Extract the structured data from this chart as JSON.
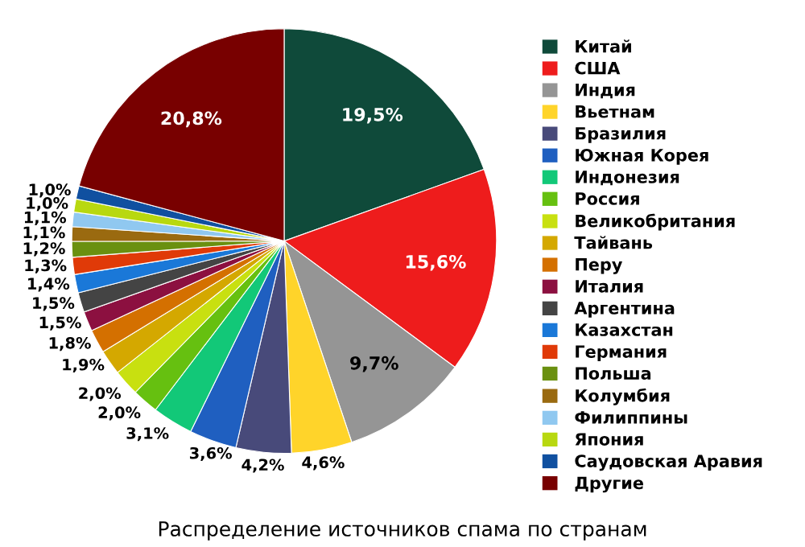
{
  "chart_data": {
    "type": "pie",
    "title": "Распределение источников спама по странам",
    "categories": [
      "Китай",
      "США",
      "Индия",
      "Вьетнам",
      "Бразилия",
      "Южная Корея",
      "Индонезия",
      "Россия",
      "Великобритания",
      "Тайвань",
      "Перу",
      "Италия",
      "Аргентина",
      "Казахстан",
      "Германия",
      "Польша",
      "Колумбия",
      "Филиппины",
      "Япония",
      "Саудовская Аравия",
      "Другие"
    ],
    "values": [
      19.5,
      15.6,
      9.7,
      4.6,
      4.2,
      3.6,
      3.1,
      2.0,
      2.0,
      1.9,
      1.8,
      1.5,
      1.5,
      1.4,
      1.3,
      1.2,
      1.1,
      1.1,
      1.0,
      1.0,
      20.8
    ],
    "value_labels": [
      "19,5%",
      "15,6%",
      "9,7%",
      "4,6%",
      "4,2%",
      "3,6%",
      "3,1%",
      "2,0%",
      "2,0%",
      "1,9%",
      "1,8%",
      "1,5%",
      "1,5%",
      "1,4%",
      "1,3%",
      "1,2%",
      "1,1%",
      "1,1%",
      "1,0%",
      "1,0%",
      "20,8%"
    ],
    "colors": [
      "#0f4a3a",
      "#ee1c1c",
      "#959595",
      "#ffd42a",
      "#484a7a",
      "#1f5fc0",
      "#12c878",
      "#66c010",
      "#c8e010",
      "#d4a800",
      "#d47000",
      "#8c1040",
      "#444444",
      "#1a78d8",
      "#e03a08",
      "#6a9010",
      "#9a6a10",
      "#90c8f0",
      "#b8d810",
      "#1050a0",
      "#780000"
    ],
    "legend": "right"
  }
}
